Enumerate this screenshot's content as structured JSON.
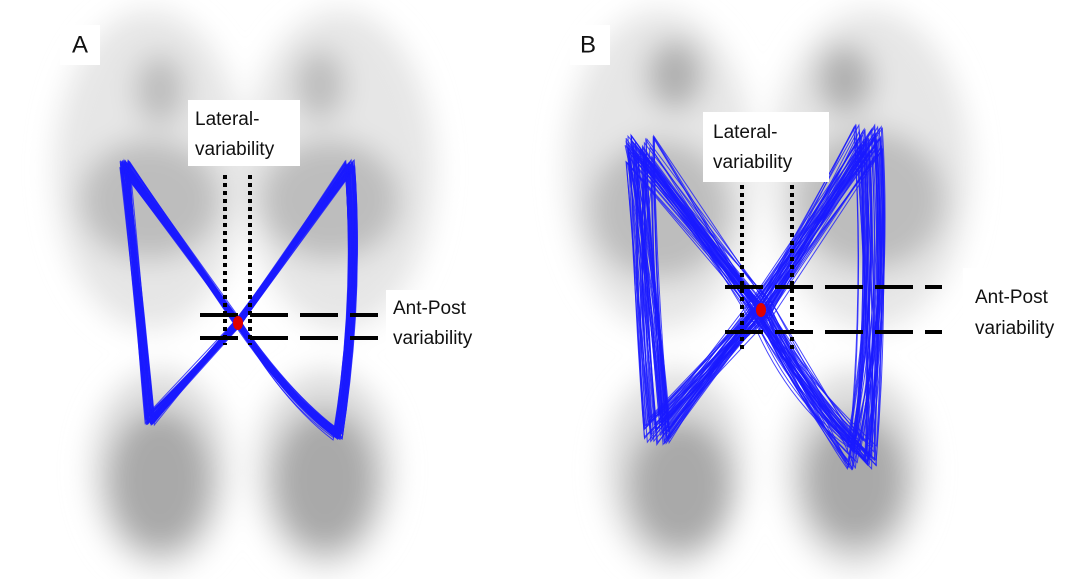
{
  "panels": [
    {
      "label": "A",
      "lateral_label": [
        "Lateral-",
        "variability"
      ],
      "antpost_label": [
        "Ant-Post",
        "variability"
      ]
    },
    {
      "label": "B",
      "lateral_label": [
        "Lateral-",
        "variability"
      ],
      "antpost_label": [
        "Ant-Post",
        "variability"
      ]
    }
  ]
}
